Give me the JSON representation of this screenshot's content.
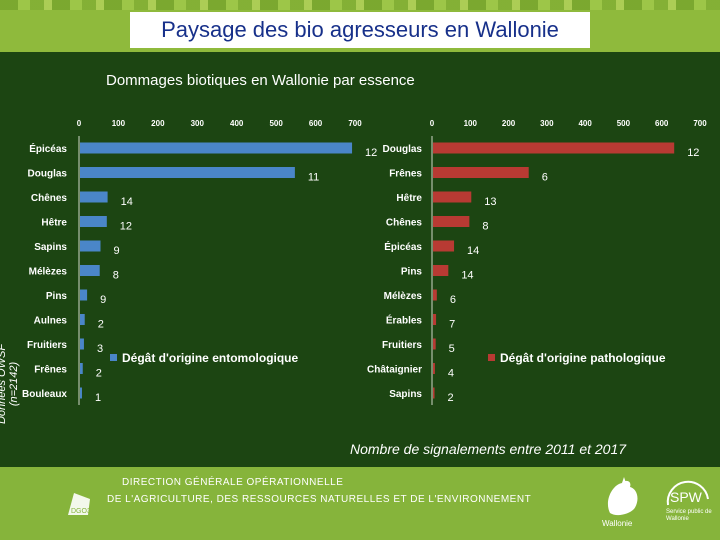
{
  "header": {
    "title": "Paysage des bio agresseurs en Wallonie"
  },
  "chart_title": "Dommages biotiques en Wallonie par essence",
  "y_side_label": "Données OWSF (n=2142)",
  "footnote": "Nombre de signalements entre 2011 et 2017",
  "footer": {
    "line1": "DIRECTION GÉNÉRALE OPÉRATIONNELLE",
    "line2": "DE L'AGRICULTURE, DES RESSOURCES NATURELLES ET DE L'ENVIRONNEMENT",
    "logo_text": "DGO3",
    "wallonie_text": "Wallonie",
    "spw_text": "SPW",
    "spw_sub": "Service public de Wallonie"
  },
  "colors": {
    "entomo": "#4a86c8",
    "patho": "#b83a33",
    "label": "#ffffff"
  },
  "chart_data": [
    {
      "type": "bar",
      "orientation": "horizontal",
      "legend": "Dégât d'origine entomologique",
      "legend_position": "right",
      "categories": [
        "Épicéas",
        "Douglas",
        "Chênes",
        "Hêtre",
        "Sapins",
        "Mélèzes",
        "Pins",
        "Aulnes",
        "Fruitiers",
        "Frênes",
        "Bouleaux"
      ],
      "values": [
        690,
        545,
        70,
        68,
        52,
        50,
        18,
        12,
        10,
        7,
        5
      ],
      "data_labels": [
        "12",
        "11",
        "14",
        "12",
        "9",
        "8",
        "9",
        "2",
        "3",
        "2",
        "1"
      ],
      "xlim": [
        0,
        700
      ],
      "xticks": [
        0,
        100,
        200,
        300,
        400,
        500,
        600,
        700
      ]
    },
    {
      "type": "bar",
      "orientation": "horizontal",
      "legend": "Dégât d'origine pathologique",
      "legend_position": "right",
      "categories": [
        "Douglas",
        "Frênes",
        "Hêtre",
        "Chênes",
        "Épicéas",
        "Pins",
        "Mélèzes",
        "Érables",
        "Fruitiers",
        "Châtaignier",
        "Sapins"
      ],
      "values": [
        630,
        250,
        100,
        95,
        55,
        40,
        10,
        8,
        7,
        5,
        4
      ],
      "data_labels": [
        "12",
        "6",
        "13",
        "8",
        "14",
        "14",
        "6",
        "7",
        "5",
        "4",
        "2"
      ],
      "xlim": [
        0,
        700
      ],
      "xticks": [
        0,
        100,
        200,
        300,
        400,
        500,
        600,
        700
      ]
    }
  ]
}
